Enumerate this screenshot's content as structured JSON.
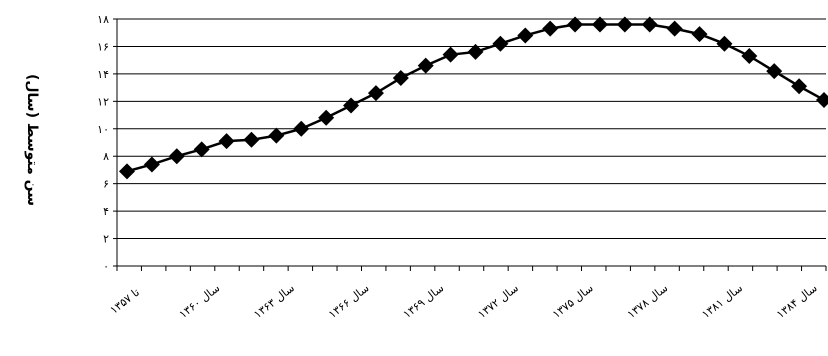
{
  "chart_data": {
    "type": "line",
    "title": "",
    "xlabel": "",
    "ylabel": "سن متوسط (سال)",
    "ylim": [
      0,
      18
    ],
    "grid": true,
    "y_ticks": [
      {
        "value": 0,
        "label": "۰"
      },
      {
        "value": 2,
        "label": "۲"
      },
      {
        "value": 4,
        "label": "۴"
      },
      {
        "value": 6,
        "label": "۶"
      },
      {
        "value": 8,
        "label": "۸"
      },
      {
        "value": 10,
        "label": "۱۰"
      },
      {
        "value": 12,
        "label": "۱۲"
      },
      {
        "value": 14,
        "label": "۱۴"
      },
      {
        "value": 16,
        "label": "۱۶"
      },
      {
        "value": 18,
        "label": "۱۸"
      }
    ],
    "x_tick_labels": [
      {
        "index": 0,
        "label": "تا ۱۳۵۷"
      },
      {
        "index": 3,
        "label": "سال ۱۳۶۰"
      },
      {
        "index": 6,
        "label": "سال ۱۳۶۳"
      },
      {
        "index": 9,
        "label": "سال ۱۳۶۶"
      },
      {
        "index": 12,
        "label": "سال ۱۳۶۹"
      },
      {
        "index": 15,
        "label": "سال ۱۳۷۲"
      },
      {
        "index": 18,
        "label": "سال ۱۳۷۵"
      },
      {
        "index": 21,
        "label": "سال ۱۳۷۸"
      },
      {
        "index": 24,
        "label": "سال ۱۳۸۱"
      },
      {
        "index": 27,
        "label": "سال ۱۳۸۴"
      }
    ],
    "series": [
      {
        "color": "#000000",
        "marker": "diamond",
        "values": [
          6.9,
          7.4,
          8.0,
          8.5,
          9.1,
          9.2,
          9.5,
          10.0,
          10.8,
          11.7,
          12.6,
          13.7,
          14.6,
          15.4,
          15.6,
          16.2,
          16.8,
          17.3,
          17.6,
          17.6,
          17.6,
          17.6,
          17.3,
          16.9,
          16.2,
          15.3,
          14.2,
          13.1,
          12.1
        ]
      }
    ]
  }
}
